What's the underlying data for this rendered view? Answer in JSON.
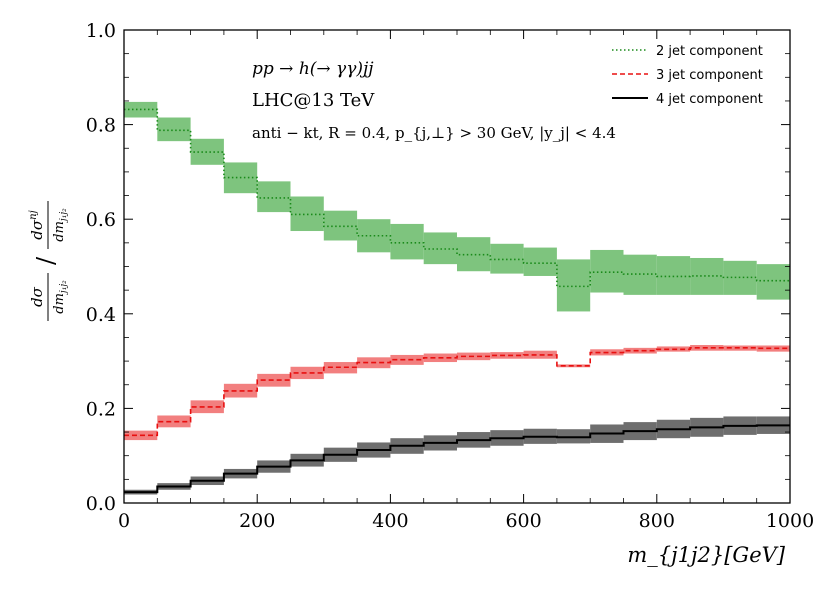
{
  "chart_data": {
    "type": "line",
    "step": true,
    "title": "",
    "xlabel": "m_{j1j2}[GeV]",
    "ylabel": "(dσ/dm_{j1j2}) / (dσ^{nj}/dm_{j1j2})",
    "xlim": [
      0,
      1000
    ],
    "ylim": [
      0.0,
      1.0
    ],
    "x_ticks": [
      0,
      200,
      400,
      600,
      800,
      1000
    ],
    "y_ticks": [
      0.0,
      0.2,
      0.4,
      0.6,
      0.8,
      1.0
    ],
    "x_tick_labels": [
      "0",
      "200",
      "400",
      "600",
      "800",
      "1000"
    ],
    "y_tick_labels": [
      "0.0",
      "0.2",
      "0.4",
      "0.6",
      "0.8",
      "1.0"
    ],
    "bin_edges": [
      0,
      50,
      100,
      150,
      200,
      250,
      300,
      350,
      400,
      450,
      500,
      550,
      600,
      650,
      700,
      750,
      800,
      850,
      900,
      950,
      1000
    ],
    "annotations": {
      "process": "pp → h(→ γγ)jj",
      "energy": "LHC@13 TeV",
      "cuts": "anti − kt, R = 0.4, p_{j,⊥} > 30 GeV, |y_j| < 4.4"
    },
    "legend_position": "top-right",
    "series": [
      {
        "name": "2 jet component",
        "color": "#1a8a1a",
        "band_color": "#7ec47e",
        "linestyle": "dotted",
        "values": [
          0.832,
          0.788,
          0.742,
          0.688,
          0.645,
          0.61,
          0.585,
          0.565,
          0.55,
          0.537,
          0.525,
          0.515,
          0.507,
          0.458,
          0.488,
          0.484,
          0.479,
          0.48,
          0.477,
          0.47
        ],
        "band_lower": [
          0.815,
          0.765,
          0.715,
          0.655,
          0.615,
          0.575,
          0.555,
          0.53,
          0.515,
          0.505,
          0.49,
          0.485,
          0.48,
          0.405,
          0.445,
          0.44,
          0.44,
          0.44,
          0.44,
          0.43
        ],
        "band_upper": [
          0.848,
          0.815,
          0.77,
          0.72,
          0.68,
          0.648,
          0.618,
          0.6,
          0.59,
          0.572,
          0.562,
          0.548,
          0.54,
          0.515,
          0.535,
          0.525,
          0.522,
          0.518,
          0.512,
          0.505
        ]
      },
      {
        "name": "3 jet component",
        "color": "#e81010",
        "band_color": "#f27f7f",
        "linestyle": "dashed",
        "values": [
          0.143,
          0.172,
          0.203,
          0.237,
          0.26,
          0.275,
          0.287,
          0.297,
          0.303,
          0.307,
          0.31,
          0.312,
          0.313,
          0.29,
          0.318,
          0.322,
          0.325,
          0.328,
          0.328,
          0.327
        ],
        "band_lower": [
          0.133,
          0.16,
          0.19,
          0.223,
          0.246,
          0.262,
          0.274,
          0.285,
          0.292,
          0.298,
          0.302,
          0.305,
          0.305,
          0.287,
          0.312,
          0.316,
          0.32,
          0.322,
          0.322,
          0.32
        ],
        "band_upper": [
          0.153,
          0.185,
          0.217,
          0.252,
          0.273,
          0.288,
          0.298,
          0.308,
          0.313,
          0.316,
          0.318,
          0.319,
          0.322,
          0.293,
          0.325,
          0.328,
          0.331,
          0.334,
          0.333,
          0.333
        ]
      },
      {
        "name": "4 jet component",
        "color": "#000000",
        "band_color": "#6e6e6e",
        "linestyle": "solid",
        "values": [
          0.023,
          0.035,
          0.047,
          0.062,
          0.077,
          0.09,
          0.102,
          0.112,
          0.121,
          0.127,
          0.133,
          0.137,
          0.14,
          0.139,
          0.147,
          0.152,
          0.156,
          0.16,
          0.163,
          0.164
        ],
        "band_lower": [
          0.018,
          0.028,
          0.038,
          0.052,
          0.064,
          0.077,
          0.087,
          0.096,
          0.104,
          0.111,
          0.117,
          0.121,
          0.125,
          0.126,
          0.127,
          0.133,
          0.137,
          0.14,
          0.144,
          0.146
        ],
        "band_upper": [
          0.028,
          0.042,
          0.056,
          0.072,
          0.09,
          0.104,
          0.117,
          0.128,
          0.137,
          0.143,
          0.15,
          0.154,
          0.157,
          0.156,
          0.166,
          0.171,
          0.176,
          0.18,
          0.183,
          0.183
        ]
      }
    ]
  }
}
